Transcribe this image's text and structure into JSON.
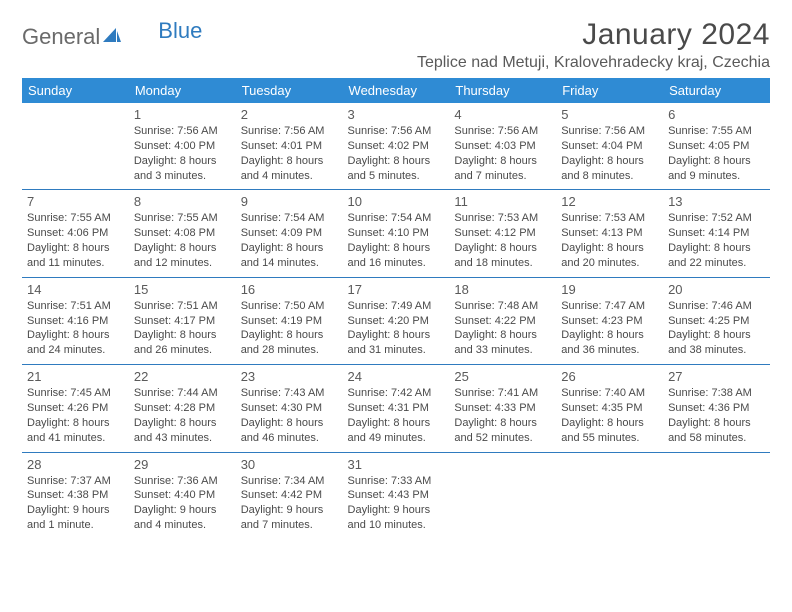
{
  "brand": {
    "part1": "General",
    "part2": "Blue"
  },
  "title": "January 2024",
  "location": "Teplice nad Metuji, Kralovehradecky kraj, Czechia",
  "colors": {
    "header_bg": "#2f8bd4",
    "header_text": "#ffffff",
    "rule": "#2f7bbf",
    "text": "#4a4a4a",
    "brand_blue": "#2f7bbf",
    "brand_gray": "#6a6a6a"
  },
  "weekdays": [
    "Sunday",
    "Monday",
    "Tuesday",
    "Wednesday",
    "Thursday",
    "Friday",
    "Saturday"
  ],
  "weeks": [
    [
      null,
      {
        "n": "1",
        "sr": "Sunrise: 7:56 AM",
        "ss": "Sunset: 4:00 PM",
        "d1": "Daylight: 8 hours",
        "d2": "and 3 minutes."
      },
      {
        "n": "2",
        "sr": "Sunrise: 7:56 AM",
        "ss": "Sunset: 4:01 PM",
        "d1": "Daylight: 8 hours",
        "d2": "and 4 minutes."
      },
      {
        "n": "3",
        "sr": "Sunrise: 7:56 AM",
        "ss": "Sunset: 4:02 PM",
        "d1": "Daylight: 8 hours",
        "d2": "and 5 minutes."
      },
      {
        "n": "4",
        "sr": "Sunrise: 7:56 AM",
        "ss": "Sunset: 4:03 PM",
        "d1": "Daylight: 8 hours",
        "d2": "and 7 minutes."
      },
      {
        "n": "5",
        "sr": "Sunrise: 7:56 AM",
        "ss": "Sunset: 4:04 PM",
        "d1": "Daylight: 8 hours",
        "d2": "and 8 minutes."
      },
      {
        "n": "6",
        "sr": "Sunrise: 7:55 AM",
        "ss": "Sunset: 4:05 PM",
        "d1": "Daylight: 8 hours",
        "d2": "and 9 minutes."
      }
    ],
    [
      {
        "n": "7",
        "sr": "Sunrise: 7:55 AM",
        "ss": "Sunset: 4:06 PM",
        "d1": "Daylight: 8 hours",
        "d2": "and 11 minutes."
      },
      {
        "n": "8",
        "sr": "Sunrise: 7:55 AM",
        "ss": "Sunset: 4:08 PM",
        "d1": "Daylight: 8 hours",
        "d2": "and 12 minutes."
      },
      {
        "n": "9",
        "sr": "Sunrise: 7:54 AM",
        "ss": "Sunset: 4:09 PM",
        "d1": "Daylight: 8 hours",
        "d2": "and 14 minutes."
      },
      {
        "n": "10",
        "sr": "Sunrise: 7:54 AM",
        "ss": "Sunset: 4:10 PM",
        "d1": "Daylight: 8 hours",
        "d2": "and 16 minutes."
      },
      {
        "n": "11",
        "sr": "Sunrise: 7:53 AM",
        "ss": "Sunset: 4:12 PM",
        "d1": "Daylight: 8 hours",
        "d2": "and 18 minutes."
      },
      {
        "n": "12",
        "sr": "Sunrise: 7:53 AM",
        "ss": "Sunset: 4:13 PM",
        "d1": "Daylight: 8 hours",
        "d2": "and 20 minutes."
      },
      {
        "n": "13",
        "sr": "Sunrise: 7:52 AM",
        "ss": "Sunset: 4:14 PM",
        "d1": "Daylight: 8 hours",
        "d2": "and 22 minutes."
      }
    ],
    [
      {
        "n": "14",
        "sr": "Sunrise: 7:51 AM",
        "ss": "Sunset: 4:16 PM",
        "d1": "Daylight: 8 hours",
        "d2": "and 24 minutes."
      },
      {
        "n": "15",
        "sr": "Sunrise: 7:51 AM",
        "ss": "Sunset: 4:17 PM",
        "d1": "Daylight: 8 hours",
        "d2": "and 26 minutes."
      },
      {
        "n": "16",
        "sr": "Sunrise: 7:50 AM",
        "ss": "Sunset: 4:19 PM",
        "d1": "Daylight: 8 hours",
        "d2": "and 28 minutes."
      },
      {
        "n": "17",
        "sr": "Sunrise: 7:49 AM",
        "ss": "Sunset: 4:20 PM",
        "d1": "Daylight: 8 hours",
        "d2": "and 31 minutes."
      },
      {
        "n": "18",
        "sr": "Sunrise: 7:48 AM",
        "ss": "Sunset: 4:22 PM",
        "d1": "Daylight: 8 hours",
        "d2": "and 33 minutes."
      },
      {
        "n": "19",
        "sr": "Sunrise: 7:47 AM",
        "ss": "Sunset: 4:23 PM",
        "d1": "Daylight: 8 hours",
        "d2": "and 36 minutes."
      },
      {
        "n": "20",
        "sr": "Sunrise: 7:46 AM",
        "ss": "Sunset: 4:25 PM",
        "d1": "Daylight: 8 hours",
        "d2": "and 38 minutes."
      }
    ],
    [
      {
        "n": "21",
        "sr": "Sunrise: 7:45 AM",
        "ss": "Sunset: 4:26 PM",
        "d1": "Daylight: 8 hours",
        "d2": "and 41 minutes."
      },
      {
        "n": "22",
        "sr": "Sunrise: 7:44 AM",
        "ss": "Sunset: 4:28 PM",
        "d1": "Daylight: 8 hours",
        "d2": "and 43 minutes."
      },
      {
        "n": "23",
        "sr": "Sunrise: 7:43 AM",
        "ss": "Sunset: 4:30 PM",
        "d1": "Daylight: 8 hours",
        "d2": "and 46 minutes."
      },
      {
        "n": "24",
        "sr": "Sunrise: 7:42 AM",
        "ss": "Sunset: 4:31 PM",
        "d1": "Daylight: 8 hours",
        "d2": "and 49 minutes."
      },
      {
        "n": "25",
        "sr": "Sunrise: 7:41 AM",
        "ss": "Sunset: 4:33 PM",
        "d1": "Daylight: 8 hours",
        "d2": "and 52 minutes."
      },
      {
        "n": "26",
        "sr": "Sunrise: 7:40 AM",
        "ss": "Sunset: 4:35 PM",
        "d1": "Daylight: 8 hours",
        "d2": "and 55 minutes."
      },
      {
        "n": "27",
        "sr": "Sunrise: 7:38 AM",
        "ss": "Sunset: 4:36 PM",
        "d1": "Daylight: 8 hours",
        "d2": "and 58 minutes."
      }
    ],
    [
      {
        "n": "28",
        "sr": "Sunrise: 7:37 AM",
        "ss": "Sunset: 4:38 PM",
        "d1": "Daylight: 9 hours",
        "d2": "and 1 minute."
      },
      {
        "n": "29",
        "sr": "Sunrise: 7:36 AM",
        "ss": "Sunset: 4:40 PM",
        "d1": "Daylight: 9 hours",
        "d2": "and 4 minutes."
      },
      {
        "n": "30",
        "sr": "Sunrise: 7:34 AM",
        "ss": "Sunset: 4:42 PM",
        "d1": "Daylight: 9 hours",
        "d2": "and 7 minutes."
      },
      {
        "n": "31",
        "sr": "Sunrise: 7:33 AM",
        "ss": "Sunset: 4:43 PM",
        "d1": "Daylight: 9 hours",
        "d2": "and 10 minutes."
      },
      null,
      null,
      null
    ]
  ]
}
